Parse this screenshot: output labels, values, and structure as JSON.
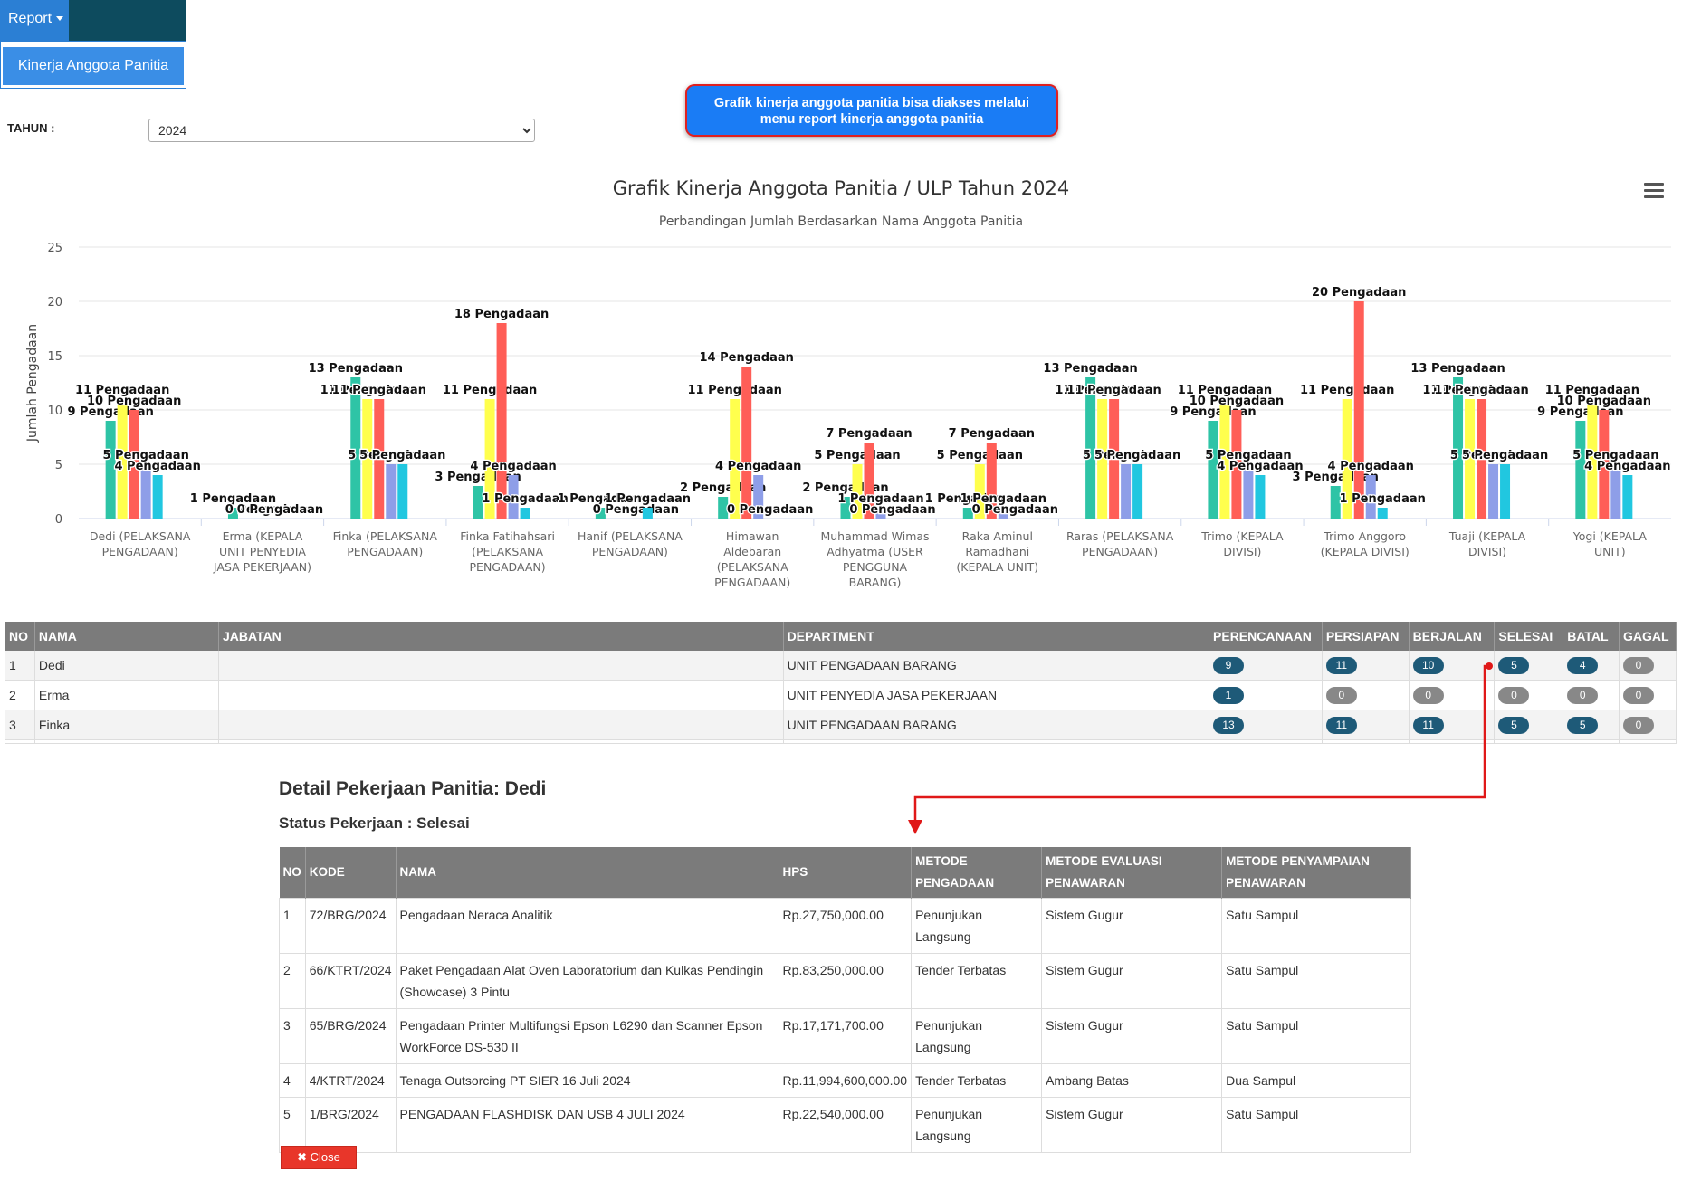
{
  "nav": {
    "report_label": "Report",
    "menu_item": "Kinerja Anggota Panitia"
  },
  "callout": {
    "line1": "Grafik kinerja anggota panitia bisa diakses melalui",
    "line2": "menu report kinerja anggota panitia"
  },
  "filter": {
    "label": "TAHUN :",
    "value": "2024"
  },
  "chart_data": {
    "type": "bar",
    "title": "Grafik Kinerja Anggota Panitia / ULP Tahun 2024",
    "subtitle": "Perbandingan Jumlah Berdasarkan Nama Anggota Panitia",
    "ylabel": "Jumlah Pengadaan",
    "ylim": [
      0,
      25
    ],
    "yticks": [
      0,
      5,
      10,
      15,
      20,
      25
    ],
    "label_suffix": " Pengadaan",
    "categories": [
      [
        "Dedi (PELAKSANA",
        "PENGADAAN)"
      ],
      [
        "Erma (KEPALA",
        "UNIT PENYEDIA",
        "JASA PEKERJAAN)"
      ],
      [
        "Finka (PELAKSANA",
        "PENGADAAN)"
      ],
      [
        "Finka Fatihahsari",
        "(PELAKSANA",
        "PENGADAAN)"
      ],
      [
        "Hanif (PELAKSANA",
        "PENGADAAN)"
      ],
      [
        "Himawan",
        "Aldebaran",
        "(PELAKSANA",
        "PENGADAAN)"
      ],
      [
        "Muhammad Wimas",
        "Adhyatma (USER",
        "PENGGUNA",
        "BARANG)"
      ],
      [
        "Raka Aminul",
        "Ramadhani",
        "(KEPALA UNIT)"
      ],
      [
        "Raras (PELAKSANA",
        "PENGADAAN)"
      ],
      [
        "Trimo (KEPALA",
        "DIVISI)"
      ],
      [
        "Trimo Anggoro",
        "(KEPALA DIVISI)"
      ],
      [
        "Tuaji (KEPALA",
        "DIVISI)"
      ],
      [
        "Yogi (KEPALA",
        "UNIT)"
      ]
    ],
    "series": [
      {
        "color": "#2ec4a6",
        "values": [
          9,
          1,
          13,
          3,
          1,
          2,
          2,
          1,
          13,
          9,
          3,
          13,
          9
        ]
      },
      {
        "color": "#ffff4d",
        "values": [
          11,
          0,
          11,
          11,
          0,
          11,
          5,
          5,
          11,
          11,
          11,
          11,
          11
        ]
      },
      {
        "color": "#ff5e57",
        "values": [
          10,
          0,
          11,
          18,
          0,
          14,
          7,
          7,
          11,
          10,
          20,
          11,
          10
        ]
      },
      {
        "color": "#8e9ee8",
        "values": [
          5,
          0,
          5,
          4,
          0,
          4,
          1,
          1,
          5,
          5,
          4,
          5,
          5
        ]
      },
      {
        "color": "#21c7e0",
        "values": [
          4,
          0,
          5,
          1,
          1,
          0,
          0,
          0,
          5,
          4,
          1,
          5,
          4
        ]
      },
      {
        "color": "#2a8cff",
        "values": [
          0,
          0,
          0,
          0,
          0,
          0,
          0,
          0,
          0,
          0,
          0,
          0,
          0
        ]
      }
    ]
  },
  "members": {
    "columns": [
      "NO",
      "NAMA",
      "JABATAN",
      "DEPARTMENT",
      "PERENCANAAN",
      "PERSIAPAN",
      "BERJALAN",
      "SELESAI",
      "BATAL",
      "GAGAL"
    ],
    "rows": [
      {
        "no": "1",
        "nama": "Dedi",
        "jabatan": "",
        "department": "UNIT PENGADAAN BARANG",
        "counts": [
          "9",
          "11",
          "10",
          "5",
          "4",
          "0"
        ]
      },
      {
        "no": "2",
        "nama": "Erma",
        "jabatan": "",
        "department": "UNIT PENYEDIA JASA PEKERJAAN",
        "counts": [
          "1",
          "0",
          "0",
          "0",
          "0",
          "0"
        ]
      },
      {
        "no": "3",
        "nama": "Finka",
        "jabatan": "",
        "department": "UNIT PENGADAAN BARANG",
        "counts": [
          "13",
          "11",
          "11",
          "5",
          "5",
          "0"
        ]
      }
    ]
  },
  "detail": {
    "title": "Detail Pekerjaan Panitia: Dedi",
    "status": "Status Pekerjaan : Selesai",
    "columns": [
      "NO",
      "KODE",
      "NAMA",
      "HPS",
      "METODE PENGADAAN",
      "METODE EVALUASI PENAWARAN",
      "METODE PENYAMPAIAN PENAWARAN"
    ],
    "rows": [
      {
        "no": "1",
        "kode": "72/BRG/2024",
        "nama": "Pengadaan Neraca Analitik",
        "hps": "Rp.27,750,000.00",
        "metode_pengadaan": "Penunjukan Langsung",
        "metode_evaluasi": "Sistem Gugur",
        "metode_penyampaian": "Satu Sampul"
      },
      {
        "no": "2",
        "kode": "66/KTRT/2024",
        "nama": "Paket Pengadaan Alat Oven Laboratorium dan Kulkas Pendingin (Showcase) 3 Pintu",
        "hps": "Rp.83,250,000.00",
        "metode_pengadaan": "Tender Terbatas",
        "metode_evaluasi": "Sistem Gugur",
        "metode_penyampaian": "Satu Sampul"
      },
      {
        "no": "3",
        "kode": "65/BRG/2024",
        "nama": "Pengadaan Printer Multifungsi Epson L6290 dan Scanner Epson WorkForce DS-530 II",
        "hps": "Rp.17,171,700.00",
        "metode_pengadaan": "Penunjukan Langsung",
        "metode_evaluasi": "Sistem Gugur",
        "metode_penyampaian": "Satu Sampul"
      },
      {
        "no": "4",
        "kode": "4/KTRT/2024",
        "nama": "Tenaga Outsorcing PT SIER 16 Juli 2024",
        "hps": "Rp.11,994,600,000.00",
        "metode_pengadaan": "Tender Terbatas",
        "metode_evaluasi": "Ambang Batas",
        "metode_penyampaian": "Dua Sampul"
      },
      {
        "no": "5",
        "kode": "1/BRG/2024",
        "nama": "PENGADAAN FLASHDISK DAN USB 4 JULI 2024",
        "hps": "Rp.22,540,000.00",
        "metode_pengadaan": "Penunjukan Langsung",
        "metode_evaluasi": "Sistem Gugur",
        "metode_penyampaian": "Satu Sampul"
      }
    ],
    "close_label": "Close"
  },
  "icons": {
    "menu": "hamburger-menu-icon",
    "caret": "caret-down-icon",
    "close": "close-x-icon",
    "annotation": "red-arrow"
  },
  "colors": {
    "nav": "#0d4b5e",
    "accent": "#2b7fd4",
    "callout": "#1a7cf5",
    "close": "#e8362a",
    "arrow": "#e01818",
    "badge": "#1e5a78"
  }
}
